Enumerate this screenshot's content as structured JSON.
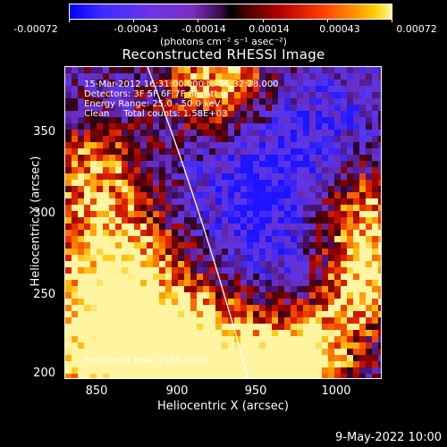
{
  "colorbar": {
    "ticks": [
      "-0.00072",
      "-0.00043",
      "-0.00014",
      "0.00014",
      "0.00043",
      "0.00072"
    ],
    "units": "(photons cm⁻² s⁻¹ asec⁻²)"
  },
  "title": "Reconstructed RHESSI Image",
  "info": {
    "time_range": "15-Mar-2012 16:31:00.000 to 16:32:28.000",
    "detectors": "Detectors: 3F 5F 6F 7F 8F, Att 0",
    "energy": "Energy Range: 25.0 - 50.0 keV",
    "method_counts": "Clean     Total counts: 1.58E+03",
    "peak": "Position of Peak: [965,202]"
  },
  "axes": {
    "xlabel": "Heliocentric X (arcsec)",
    "ylabel": "Heliocentric Y (arcsec)",
    "xticks": [
      "850",
      "900",
      "950",
      "1000"
    ],
    "yticks": [
      "350",
      "300",
      "250",
      "200"
    ]
  },
  "timestamp": "9-May-2022 10:00"
}
